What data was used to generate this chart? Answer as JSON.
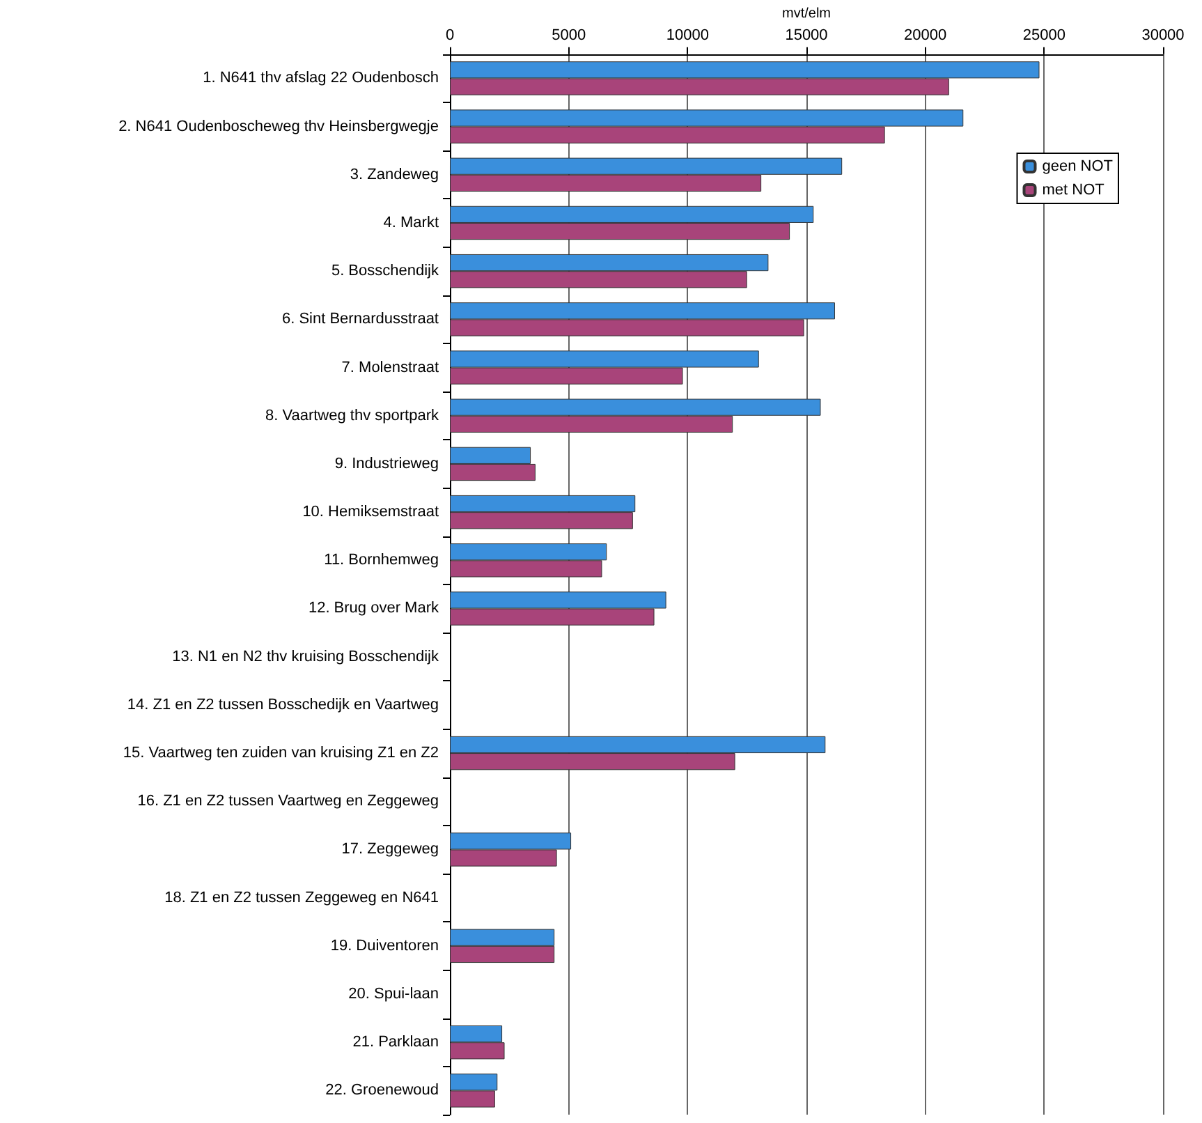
{
  "chart_data": {
    "type": "bar",
    "orientation": "horizontal",
    "xlabel": "mvt/elm",
    "categories": [
      "1. N641 thv afslag 22 Oudenbosch",
      "2. N641 Oudenboscheweg thv Heinsbergwegje",
      "3. Zandeweg",
      "4. Markt",
      "5. Bosschendijk",
      "6. Sint Bernardusstraat",
      "7. Molenstraat",
      "8. Vaartweg thv sportpark",
      "9. Industrieweg",
      "10. Hemiksemstraat",
      "11. Bornhemweg",
      "12. Brug over Mark",
      "13. N1 en N2 thv kruising Bosschendijk",
      "14. Z1 en Z2 tussen Bosschedijk en Vaartweg",
      "15. Vaartweg ten zuiden van kruising Z1 en Z2",
      "16. Z1 en Z2 tussen Vaartweg en Zeggeweg",
      "17. Zeggeweg",
      "18. Z1 en Z2 tussen Zeggeweg en N641",
      "19. Duiventoren",
      "20. Spui-laan",
      "21. Parklaan",
      "22. Groenewoud"
    ],
    "series": [
      {
        "name": "geen NOT",
        "color": "#3a8fdc",
        "values": [
          24800,
          21600,
          16500,
          15300,
          13400,
          16200,
          13000,
          15600,
          3400,
          7800,
          6600,
          9100,
          null,
          null,
          15800,
          null,
          5100,
          null,
          4400,
          null,
          2200,
          2000
        ]
      },
      {
        "name": "met NOT",
        "color": "#a8447a",
        "values": [
          21000,
          18300,
          13100,
          14300,
          12500,
          14900,
          9800,
          11900,
          3600,
          7700,
          6400,
          8600,
          null,
          null,
          12000,
          null,
          4500,
          null,
          4400,
          null,
          2300,
          1900
        ]
      }
    ],
    "xlim": [
      0,
      30000
    ],
    "xticks": [
      0,
      5000,
      10000,
      15000,
      20000,
      25000,
      30000
    ],
    "grid": "x",
    "legend": "top right"
  }
}
